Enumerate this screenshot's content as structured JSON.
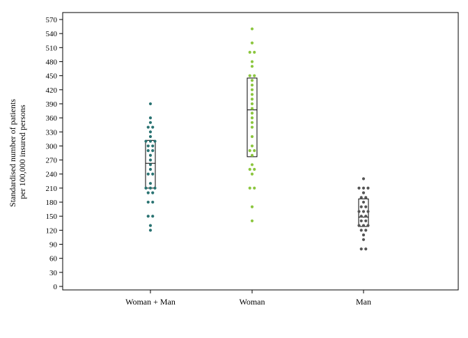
{
  "chart_data": {
    "type": "scatter",
    "subtype": "dot-plot-with-boxes",
    "title": "",
    "xlabel": "",
    "ylabel_lines": [
      "Standardised number of patients",
      "per 100,000 insured persons"
    ],
    "ylim": [
      0,
      570
    ],
    "yticks": [
      0,
      30,
      60,
      90,
      120,
      150,
      180,
      210,
      240,
      270,
      300,
      330,
      360,
      390,
      420,
      450,
      480,
      510,
      540,
      570
    ],
    "grid": false,
    "categories": [
      "Woman + Man",
      "Woman",
      "Man"
    ],
    "series": [
      {
        "color": "#2a7372",
        "box": {
          "q1": 210,
          "median": 263,
          "q3": 312
        },
        "values": [
          390,
          360,
          350,
          340,
          340,
          330,
          320,
          310,
          310,
          310,
          300,
          300,
          290,
          290,
          280,
          270,
          260,
          250,
          240,
          240,
          220,
          210,
          210,
          210,
          200,
          200,
          180,
          180,
          150,
          150,
          130,
          120
        ]
      },
      {
        "color": "#8cc63f",
        "box": {
          "q1": 277,
          "median": 377,
          "q3": 445
        },
        "values": [
          550,
          520,
          500,
          500,
          480,
          470,
          450,
          450,
          440,
          430,
          420,
          410,
          400,
          390,
          380,
          370,
          360,
          350,
          340,
          320,
          300,
          290,
          290,
          280,
          260,
          250,
          250,
          240,
          210,
          210,
          170,
          140
        ]
      },
      {
        "color": "#555555",
        "box": {
          "q1": 128,
          "median": 148,
          "q3": 187
        },
        "values": [
          230,
          210,
          210,
          210,
          200,
          190,
          190,
          180,
          170,
          170,
          160,
          160,
          160,
          150,
          150,
          140,
          140,
          130,
          130,
          130,
          120,
          120,
          110,
          100,
          80,
          80
        ]
      }
    ]
  }
}
